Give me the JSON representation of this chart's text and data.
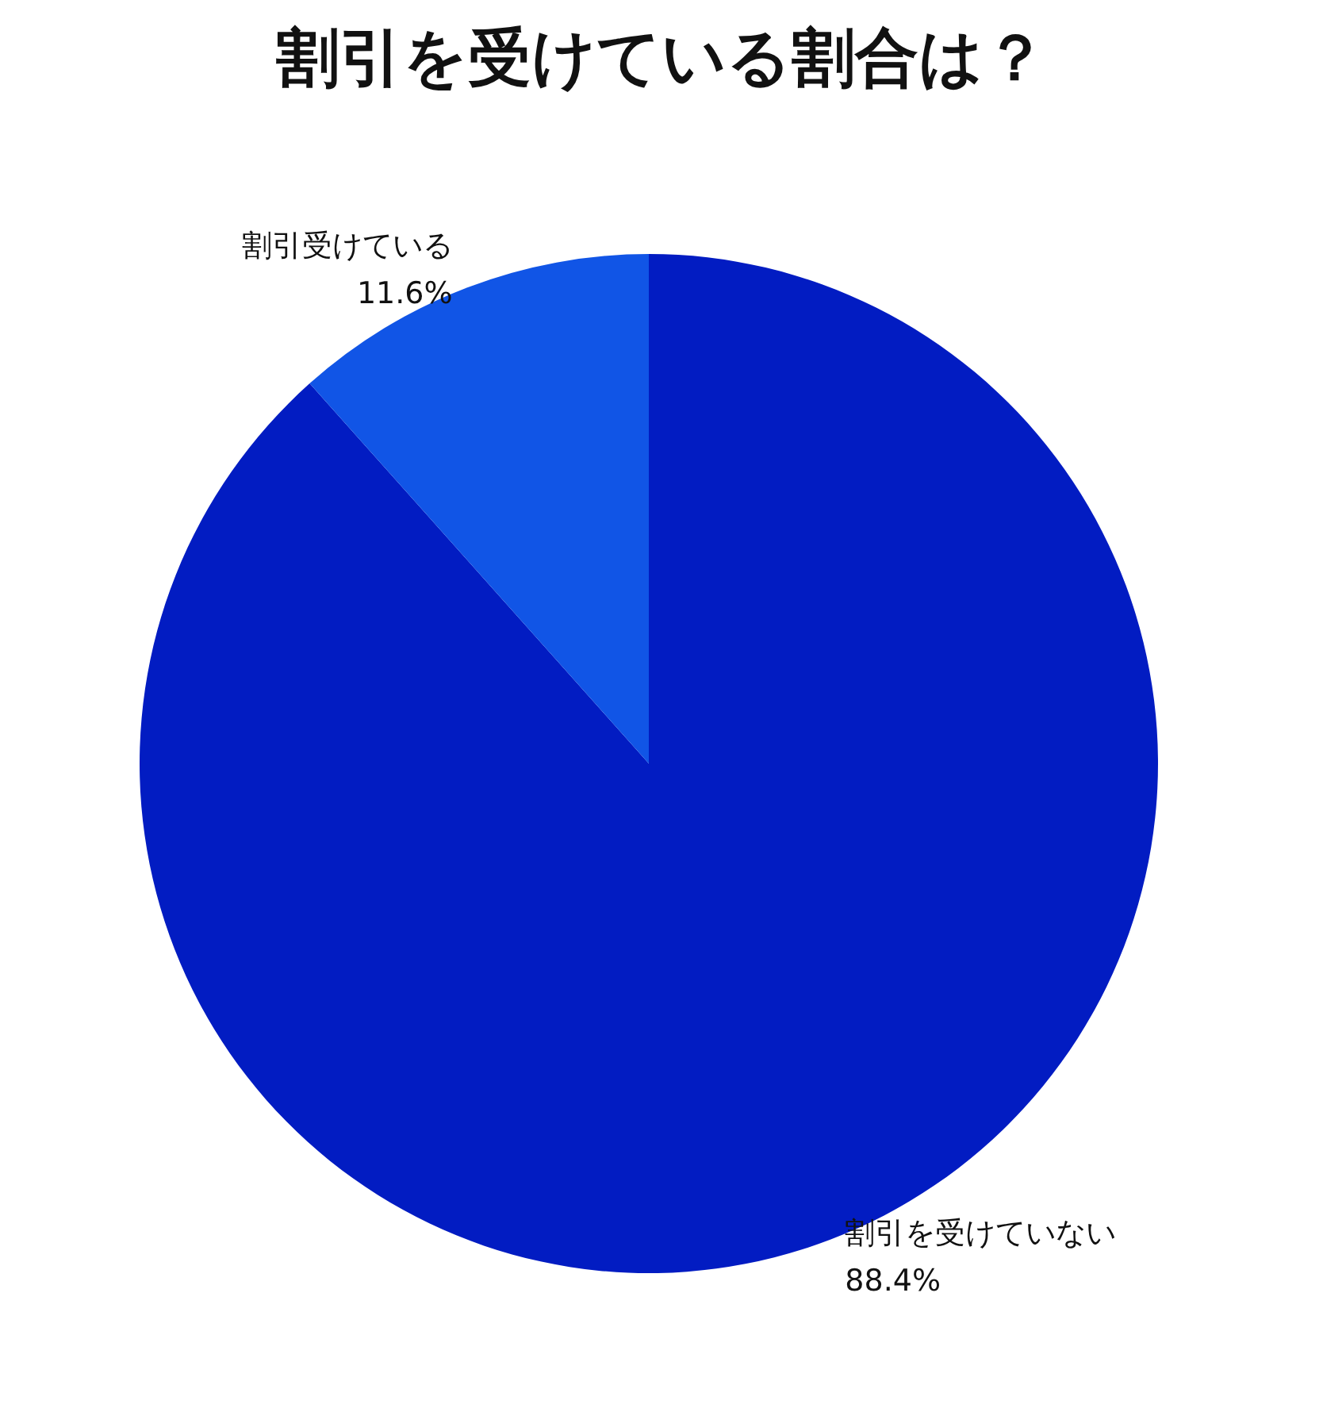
{
  "chart_data": {
    "type": "pie",
    "title": "割引を受けている割合は？",
    "categories": [
      "割引を受けていない",
      "割引受けている"
    ],
    "values": [
      88.4,
      11.6
    ],
    "value_labels": [
      "88.4%",
      "11.6%"
    ],
    "colors": [
      "#021cc2",
      "#1155e6"
    ],
    "legend": false
  }
}
